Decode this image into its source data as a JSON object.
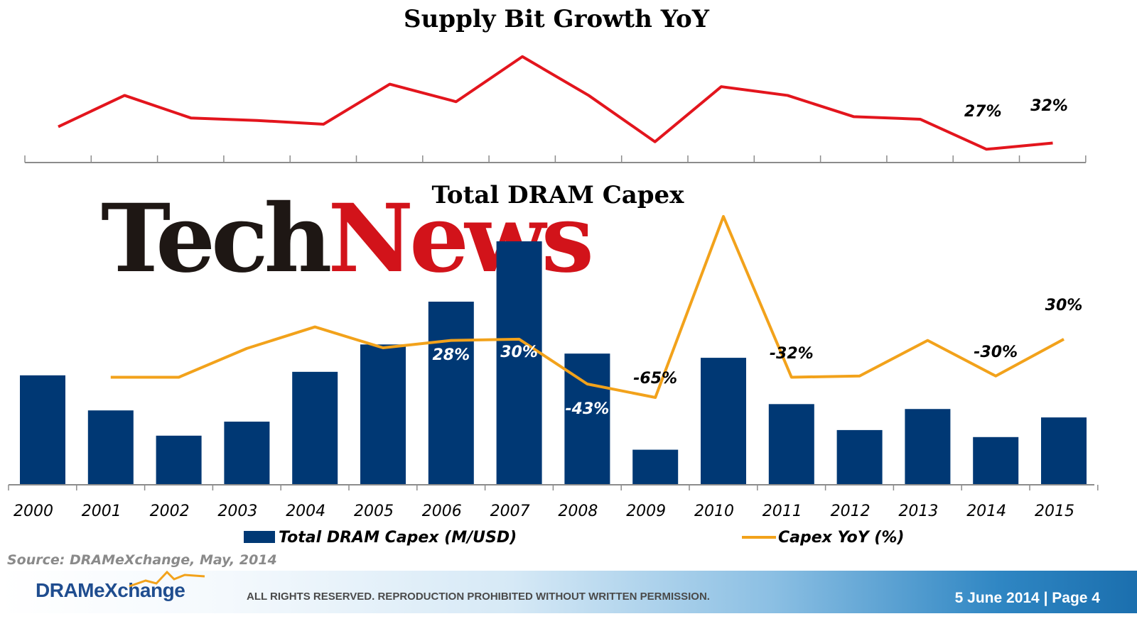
{
  "chart_data": [
    {
      "type": "line",
      "title": "Supply Bit Growth YoY",
      "x": [
        "2000",
        "2001",
        "2002",
        "2003",
        "2004",
        "2005",
        "2006",
        "2007",
        "2008",
        "2009",
        "2010",
        "2011",
        "2012",
        "2013",
        "2014",
        "2015"
      ],
      "series": [
        {
          "values": [
            45,
            70,
            52,
            50,
            47,
            79,
            65,
            101,
            70,
            33,
            77,
            70,
            53,
            51,
            27,
            32
          ]
        }
      ],
      "data_labels": [
        {
          "x": "2014",
          "text": "27%"
        },
        {
          "x": "2015",
          "text": "32%"
        }
      ],
      "color": "#e3151d",
      "grid": false
    },
    {
      "type": "bar",
      "title": "Total DRAM Capex",
      "categories": [
        "2000",
        "2001",
        "2002",
        "2003",
        "2004",
        "2005",
        "2006",
        "2007",
        "2008",
        "2009",
        "2010",
        "2011",
        "2012",
        "2013",
        "2014",
        "2015"
      ],
      "series": [
        {
          "name": "Total DRAM Capex (M/USD)",
          "type": "bar",
          "color": "#003874",
          "values": [
            15600,
            10600,
            7000,
            9000,
            16100,
            20000,
            26100,
            34700,
            18700,
            5000,
            18100,
            11500,
            7800,
            10800,
            6800,
            9600
          ]
        },
        {
          "name": "Capex YoY (%)",
          "type": "line",
          "color": "#f2a21b",
          "values": [
            null,
            -32,
            -32,
            15,
            50,
            16,
            28,
            30,
            -43,
            -65,
            230,
            -32,
            -30,
            28,
            -30,
            30
          ]
        }
      ],
      "data_labels": [
        {
          "x": "2006",
          "text": "28%"
        },
        {
          "x": "2007",
          "text": "30%"
        },
        {
          "x": "2008",
          "text": "-43%"
        },
        {
          "x": "2009",
          "text": "-65%"
        },
        {
          "x": "2011",
          "text": "-32%"
        },
        {
          "x": "2014",
          "text": "-30%"
        },
        {
          "x": "2015",
          "text": "30%"
        }
      ],
      "legend_position": "bottom",
      "grid": false
    }
  ],
  "watermark": {
    "part1": "Tech",
    "part2": "News",
    "color1": "#1e1714",
    "color2": "#d2131a"
  },
  "footer": {
    "source": "Source: DRAMeXchange, May, 2014",
    "brand": "DRAMeXchange",
    "rights": "ALL RIGHTS RESERVED. REPRODUCTION PROHIBITED WITHOUT WRITTEN PERMISSION.",
    "date_page": "5 June 2014 |  Page 4"
  }
}
